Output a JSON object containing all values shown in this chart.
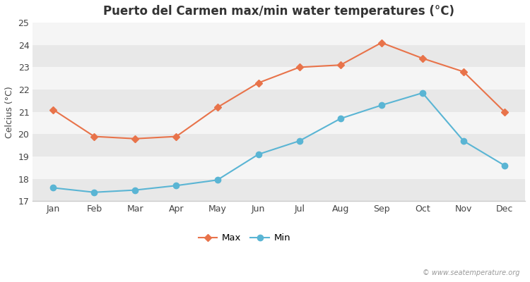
{
  "title": "Puerto del Carmen max/min water temperatures (°C)",
  "ylabel": "Celcius (°C)",
  "months": [
    "Jan",
    "Feb",
    "Mar",
    "Apr",
    "May",
    "Jun",
    "Jul",
    "Aug",
    "Sep",
    "Oct",
    "Nov",
    "Dec"
  ],
  "max_temps": [
    21.1,
    19.9,
    19.8,
    19.9,
    21.2,
    22.3,
    23.0,
    23.1,
    24.1,
    23.4,
    22.8,
    21.0
  ],
  "min_temps": [
    17.6,
    17.4,
    17.5,
    17.7,
    17.95,
    19.1,
    19.7,
    20.7,
    21.3,
    21.85,
    19.7,
    18.6
  ],
  "max_color": "#e8734a",
  "min_color": "#5ab5d4",
  "background_color": "#ffffff",
  "plot_bg_color": "#f2f2f2",
  "band_color_dark": "#e8e8e8",
  "band_color_light": "#f5f5f5",
  "ylim": [
    17,
    25
  ],
  "yticks": [
    17,
    18,
    19,
    20,
    21,
    22,
    23,
    24,
    25
  ],
  "watermark": "© www.seatemperature.org",
  "legend_labels": [
    "Max",
    "Min"
  ],
  "title_fontsize": 12,
  "label_fontsize": 9,
  "tick_fontsize": 9,
  "marker_style_max": "D",
  "marker_style_min": "o",
  "marker_size_max": 5,
  "marker_size_min": 6,
  "line_width": 1.5
}
